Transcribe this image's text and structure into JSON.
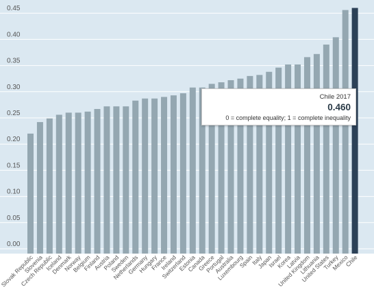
{
  "chart_data": {
    "type": "bar",
    "title": "",
    "xlabel": "",
    "ylabel": "",
    "ylim": [
      0,
      0.48
    ],
    "yticks": [
      "0.00",
      "0.05",
      "0.10",
      "0.15",
      "0.20",
      "0.25",
      "0.30",
      "0.35",
      "0.40",
      "0.45"
    ],
    "categories": [
      "Slovak Republic",
      "Slovenia",
      "Czech Republic",
      "Iceland",
      "Denmark",
      "Norway",
      "Belgium",
      "Finland",
      "Austria",
      "Poland",
      "Sweden",
      "Netherlands",
      "Germany",
      "Hungary",
      "France",
      "Ireland",
      "Switzerland",
      "Estonia",
      "Canada",
      "Greece",
      "Portugal",
      "Australia",
      "Luxembourg",
      "Spain",
      "Italy",
      "Japan",
      "Israel",
      "Korea",
      "Latvia",
      "United Kingdom",
      "Lithuania",
      "United States",
      "Turkey",
      "Mexico",
      "Chile"
    ],
    "values": [
      0.22,
      0.242,
      0.249,
      0.256,
      0.26,
      0.26,
      0.262,
      0.267,
      0.272,
      0.272,
      0.272,
      0.283,
      0.287,
      0.287,
      0.29,
      0.293,
      0.297,
      0.308,
      0.308,
      0.315,
      0.318,
      0.322,
      0.325,
      0.33,
      0.332,
      0.338,
      0.346,
      0.352,
      0.352,
      0.366,
      0.372,
      0.39,
      0.404,
      0.456,
      0.46
    ],
    "highlight": "Chile",
    "colors": {
      "background": "#dbe8f1",
      "bar": "#94a7b1",
      "highlight": "#2c4157",
      "grid": "#ffffff"
    },
    "grid": true
  },
  "tooltip": {
    "title": "Chile 2017",
    "value": "0.460",
    "note": "0 = complete equality; 1 = complete inequality"
  }
}
